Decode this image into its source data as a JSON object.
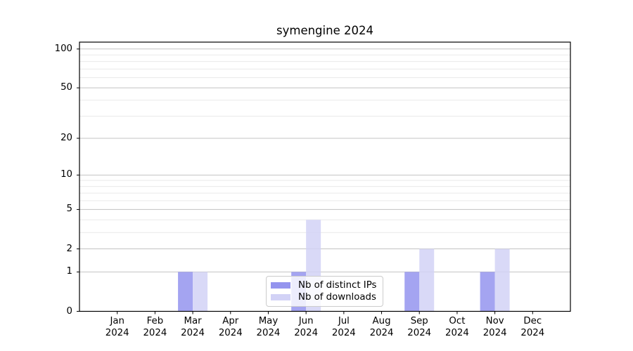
{
  "title": "symengine 2024",
  "chart_data": {
    "type": "bar",
    "title": "symengine 2024",
    "x_tick_labels": [
      {
        "month": "Jan",
        "year": "2024"
      },
      {
        "month": "Feb",
        "year": "2024"
      },
      {
        "month": "Mar",
        "year": "2024"
      },
      {
        "month": "Apr",
        "year": "2024"
      },
      {
        "month": "May",
        "year": "2024"
      },
      {
        "month": "Jun",
        "year": "2024"
      },
      {
        "month": "Jul",
        "year": "2024"
      },
      {
        "month": "Aug",
        "year": "2024"
      },
      {
        "month": "Sep",
        "year": "2024"
      },
      {
        "month": "Oct",
        "year": "2024"
      },
      {
        "month": "Nov",
        "year": "2024"
      },
      {
        "month": "Dec",
        "year": "2024"
      }
    ],
    "series": [
      {
        "name": "Nb of distinct IPs",
        "color": "#9494ee",
        "values": [
          0,
          0,
          1,
          0,
          0,
          1,
          0,
          0,
          1,
          0,
          1,
          0
        ]
      },
      {
        "name": "Nb of downloads",
        "color": "#d2d2f6",
        "values": [
          0,
          0,
          1,
          0,
          0,
          4,
          0,
          0,
          2,
          0,
          2,
          0
        ]
      }
    ],
    "yscale": "log1p",
    "ylim": [
      0,
      113
    ],
    "major_yticks": [
      0,
      1,
      2,
      5,
      10,
      20,
      50,
      100
    ],
    "minor_yticks": [
      3,
      4,
      6,
      7,
      8,
      9,
      30,
      40,
      60,
      70,
      80,
      90
    ],
    "legend_position": "lower center inside",
    "colors": {
      "grid_major": "#c3c3c3",
      "grid_minor": "#e9e9e9",
      "axis": "#000000",
      "background": "#ffffff"
    }
  }
}
